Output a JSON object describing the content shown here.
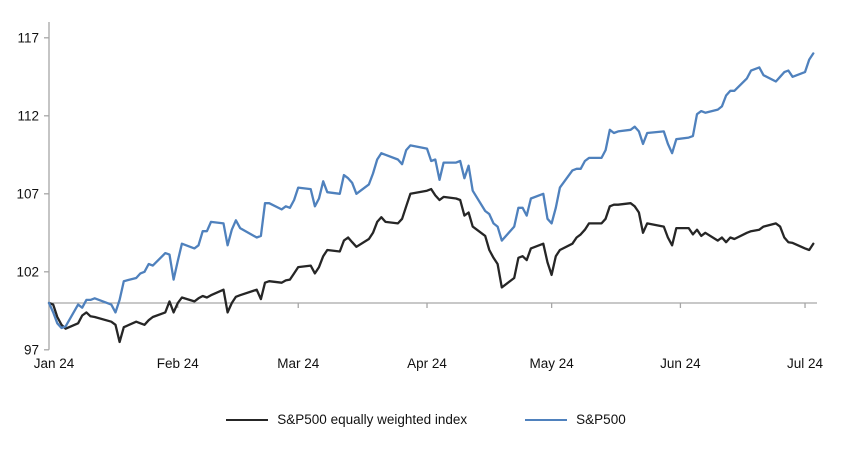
{
  "chart_data": {
    "type": "line",
    "title": "",
    "xlabel": "",
    "ylabel": "",
    "grid": false,
    "background": "#ffffff",
    "axis_color": "#a6a6a6",
    "text_color": "#111111",
    "legend_position": "bottom",
    "ylim": [
      97,
      117
    ],
    "yticks": [
      97,
      102,
      107,
      112,
      117
    ],
    "baseline": 100,
    "xticks": [
      {
        "label": "Jan 24",
        "date": "2024-01-01"
      },
      {
        "label": "Feb 24",
        "date": "2024-02-01"
      },
      {
        "label": "Mar 24",
        "date": "2024-03-01"
      },
      {
        "label": "Apr 24",
        "date": "2024-04-01"
      },
      {
        "label": "May 24",
        "date": "2024-05-01"
      },
      {
        "label": "Jun 24",
        "date": "2024-06-01"
      },
      {
        "label": "Jul 24",
        "date": "2024-07-01"
      }
    ],
    "x": [
      "2024-01-01",
      "2024-01-02",
      "2024-01-03",
      "2024-01-04",
      "2024-01-05",
      "2024-01-08",
      "2024-01-09",
      "2024-01-10",
      "2024-01-11",
      "2024-01-12",
      "2024-01-16",
      "2024-01-17",
      "2024-01-18",
      "2024-01-19",
      "2024-01-22",
      "2024-01-23",
      "2024-01-24",
      "2024-01-25",
      "2024-01-26",
      "2024-01-29",
      "2024-01-30",
      "2024-01-31",
      "2024-02-01",
      "2024-02-02",
      "2024-02-05",
      "2024-02-06",
      "2024-02-07",
      "2024-02-08",
      "2024-02-09",
      "2024-02-12",
      "2024-02-13",
      "2024-02-14",
      "2024-02-15",
      "2024-02-16",
      "2024-02-20",
      "2024-02-21",
      "2024-02-22",
      "2024-02-23",
      "2024-02-26",
      "2024-02-27",
      "2024-02-28",
      "2024-02-29",
      "2024-03-01",
      "2024-03-04",
      "2024-03-05",
      "2024-03-06",
      "2024-03-07",
      "2024-03-08",
      "2024-03-11",
      "2024-03-12",
      "2024-03-13",
      "2024-03-14",
      "2024-03-15",
      "2024-03-18",
      "2024-03-19",
      "2024-03-20",
      "2024-03-21",
      "2024-03-22",
      "2024-03-25",
      "2024-03-26",
      "2024-03-27",
      "2024-03-28",
      "2024-04-01",
      "2024-04-02",
      "2024-04-03",
      "2024-04-04",
      "2024-04-05",
      "2024-04-08",
      "2024-04-09",
      "2024-04-10",
      "2024-04-11",
      "2024-04-12",
      "2024-04-15",
      "2024-04-16",
      "2024-04-17",
      "2024-04-18",
      "2024-04-19",
      "2024-04-22",
      "2024-04-23",
      "2024-04-24",
      "2024-04-25",
      "2024-04-26",
      "2024-04-29",
      "2024-04-30",
      "2024-05-01",
      "2024-05-02",
      "2024-05-03",
      "2024-05-06",
      "2024-05-07",
      "2024-05-08",
      "2024-05-09",
      "2024-05-10",
      "2024-05-13",
      "2024-05-14",
      "2024-05-15",
      "2024-05-16",
      "2024-05-17",
      "2024-05-20",
      "2024-05-21",
      "2024-05-22",
      "2024-05-23",
      "2024-05-24",
      "2024-05-28",
      "2024-05-29",
      "2024-05-30",
      "2024-05-31",
      "2024-06-03",
      "2024-06-04",
      "2024-06-05",
      "2024-06-06",
      "2024-06-07",
      "2024-06-10",
      "2024-06-11",
      "2024-06-12",
      "2024-06-13",
      "2024-06-14",
      "2024-06-17",
      "2024-06-18",
      "2024-06-20",
      "2024-06-21",
      "2024-06-24",
      "2024-06-25",
      "2024-06-26",
      "2024-06-27",
      "2024-06-28",
      "2024-07-01",
      "2024-07-02",
      "2024-07-03"
    ],
    "series": [
      {
        "name": "S&P500 equally weighted index",
        "color": "#262626",
        "values": [
          100.0,
          99.9,
          99.1,
          98.6,
          98.35,
          98.7,
          99.2,
          99.4,
          99.15,
          99.1,
          98.8,
          98.6,
          97.5,
          98.45,
          98.8,
          98.7,
          98.6,
          98.9,
          99.1,
          99.4,
          100.1,
          99.4,
          100.0,
          100.35,
          100.1,
          100.3,
          100.45,
          100.35,
          100.5,
          100.85,
          99.4,
          100.0,
          100.4,
          100.5,
          100.85,
          100.25,
          101.3,
          101.4,
          101.3,
          101.45,
          101.5,
          101.9,
          102.3,
          102.4,
          101.9,
          102.3,
          103.0,
          103.4,
          103.3,
          104.0,
          104.2,
          103.9,
          103.6,
          104.1,
          104.5,
          105.2,
          105.5,
          105.2,
          105.1,
          105.4,
          106.2,
          107.0,
          107.2,
          107.3,
          106.9,
          106.6,
          106.8,
          106.7,
          106.6,
          105.6,
          105.8,
          104.9,
          104.3,
          103.4,
          102.9,
          102.5,
          101.0,
          101.6,
          102.9,
          103.0,
          102.75,
          103.5,
          103.8,
          102.6,
          101.8,
          103.0,
          103.4,
          103.8,
          104.2,
          104.4,
          104.7,
          105.1,
          105.1,
          105.4,
          106.2,
          106.3,
          106.3,
          106.4,
          106.2,
          105.8,
          104.5,
          105.1,
          104.9,
          104.2,
          103.7,
          104.8,
          104.8,
          104.4,
          104.7,
          104.3,
          104.5,
          104.0,
          104.2,
          103.9,
          104.2,
          104.1,
          104.5,
          104.6,
          104.7,
          104.9,
          105.1,
          104.9,
          104.2,
          103.9,
          103.85,
          103.5,
          103.4,
          103.8
        ]
      },
      {
        "name": "S&P500",
        "color": "#4f81bd",
        "values": [
          100.0,
          99.4,
          98.7,
          98.4,
          98.5,
          99.9,
          99.7,
          100.2,
          100.2,
          100.3,
          99.9,
          99.4,
          100.2,
          101.4,
          101.6,
          101.9,
          102.0,
          102.5,
          102.4,
          103.2,
          103.1,
          101.5,
          102.7,
          103.8,
          103.5,
          103.7,
          104.6,
          104.6,
          105.2,
          105.1,
          103.7,
          104.7,
          105.3,
          104.8,
          104.2,
          104.3,
          106.4,
          106.4,
          106.0,
          106.2,
          106.1,
          106.6,
          107.4,
          107.3,
          106.2,
          106.7,
          107.8,
          107.1,
          107.0,
          108.2,
          108.0,
          107.7,
          107.0,
          107.6,
          108.3,
          109.2,
          109.6,
          109.5,
          109.2,
          108.9,
          109.8,
          110.1,
          109.9,
          109.1,
          109.2,
          107.9,
          109.0,
          109.0,
          109.1,
          108.0,
          108.8,
          107.2,
          105.9,
          105.7,
          105.1,
          104.9,
          104.0,
          104.9,
          106.1,
          106.1,
          105.6,
          106.7,
          107.0,
          105.4,
          105.1,
          106.1,
          107.4,
          108.5,
          108.6,
          108.6,
          109.1,
          109.3,
          109.3,
          109.8,
          111.1,
          110.9,
          111.0,
          111.1,
          111.3,
          111.0,
          110.2,
          110.9,
          111.0,
          110.2,
          109.6,
          110.5,
          110.6,
          110.7,
          112.1,
          112.3,
          112.2,
          112.4,
          112.6,
          113.3,
          113.6,
          113.6,
          114.4,
          114.9,
          115.1,
          114.6,
          114.2,
          114.5,
          114.8,
          114.9,
          114.5,
          114.8,
          115.6,
          116.0
        ]
      }
    ]
  },
  "legend": {
    "item1": "S&P500 equally weighted index",
    "item2": "S&P500"
  }
}
